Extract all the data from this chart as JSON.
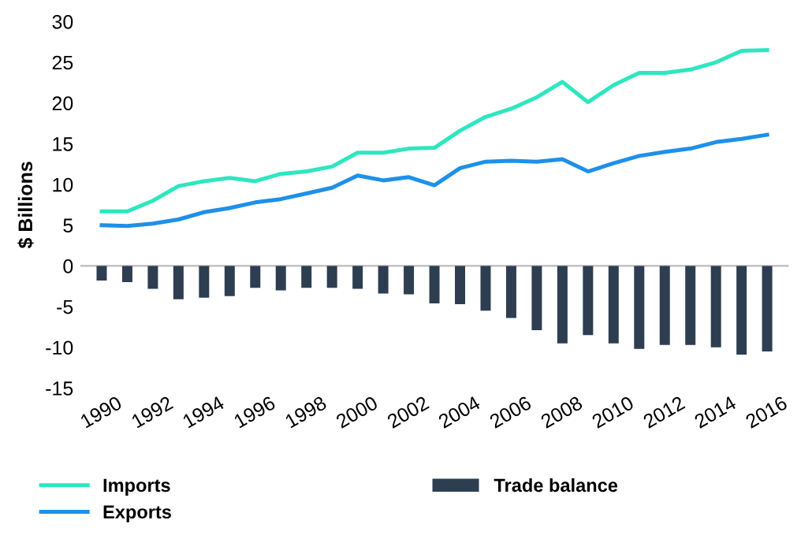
{
  "chart_data": {
    "type": "line",
    "ylabel": "$ Billions",
    "categories": [
      "1990",
      null,
      "1992",
      null,
      "1994",
      null,
      "1996",
      null,
      "1998",
      null,
      "2000",
      null,
      "2002",
      null,
      "2004",
      null,
      "2006",
      null,
      "2008",
      null,
      "2010",
      null,
      "2012",
      null,
      "2014",
      null,
      "2016"
    ],
    "series": [
      {
        "name": "Imports",
        "color": "#2ee6c0",
        "values": [
          6.7,
          6.7,
          8.0,
          9.8,
          10.4,
          10.8,
          10.4,
          11.3,
          11.6,
          12.2,
          13.9,
          13.9,
          14.4,
          14.5,
          16.6,
          18.3,
          19.3,
          20.7,
          22.6,
          20.1,
          22.2,
          23.7,
          23.7,
          24.1,
          25.0,
          26.4,
          26.5
        ]
      },
      {
        "name": "Exports",
        "color": "#1e90e8",
        "values": [
          5.0,
          4.9,
          5.2,
          5.7,
          6.6,
          7.1,
          7.8,
          8.2,
          8.9,
          9.6,
          11.1,
          10.5,
          10.9,
          9.9,
          12.0,
          12.8,
          12.9,
          12.8,
          13.1,
          11.6,
          12.6,
          13.5,
          14.0,
          14.4,
          15.2,
          15.6,
          16.1
        ]
      },
      {
        "name": "Trade balance",
        "type": "bar",
        "color": "#2d3e50",
        "values": [
          -1.8,
          -2.0,
          -2.8,
          -4.1,
          -3.9,
          -3.7,
          -2.7,
          -3.0,
          -2.7,
          -2.7,
          -2.8,
          -3.4,
          -3.5,
          -4.6,
          -4.7,
          -5.5,
          -6.4,
          -7.9,
          -9.5,
          -8.5,
          -9.5,
          -10.2,
          -9.7,
          -9.7,
          -10.0,
          -10.9,
          -10.5
        ]
      }
    ],
    "ylim": [
      -15,
      30
    ],
    "yticks": [
      -15,
      -10,
      -5,
      0,
      5,
      10,
      15,
      20,
      25,
      30
    ],
    "legend": "bottom"
  }
}
